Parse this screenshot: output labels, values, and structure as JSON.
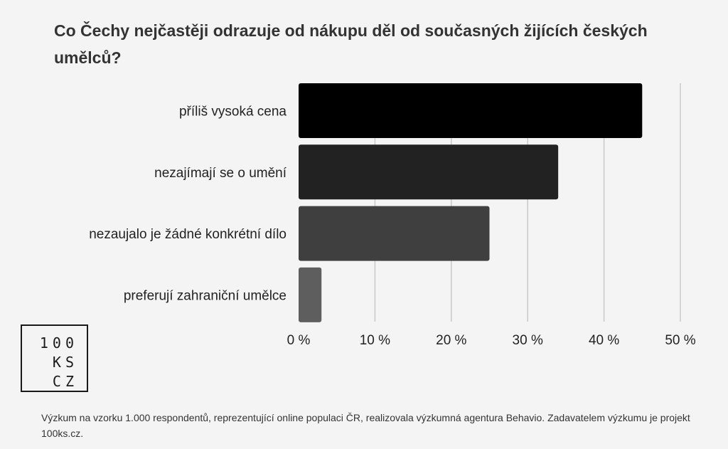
{
  "title": "Co Čechy nejčastěji odrazuje od nákupu děl od současných žijících českých umělců?",
  "chart_data": {
    "type": "bar",
    "orientation": "horizontal",
    "categories": [
      "příliš vysoká cena",
      "nezajímají se o umění",
      "nezaujalo je žádné konkrétní dílo",
      "preferují zahraniční umělce"
    ],
    "values": [
      45,
      34,
      25,
      3
    ],
    "bar_colors": [
      "#000000",
      "#222222",
      "#3f3f3f",
      "#5e5e5e"
    ],
    "xlim": [
      0,
      50
    ],
    "ticks": [
      0,
      10,
      20,
      30,
      40,
      50
    ],
    "tick_labels": [
      "0 %",
      "10 %",
      "20 %",
      "30 %",
      "40 %",
      "50 %"
    ],
    "grid": true
  },
  "logo": {
    "lines": [
      "100",
      "KS",
      "CZ"
    ]
  },
  "footnote": "Výzkum na vzorku 1.000 respondentů, reprezentující online populaci ČR, realizovala výzkumná agentura Behavio. Zadavatelem výzkumu je projekt 100ks.cz."
}
